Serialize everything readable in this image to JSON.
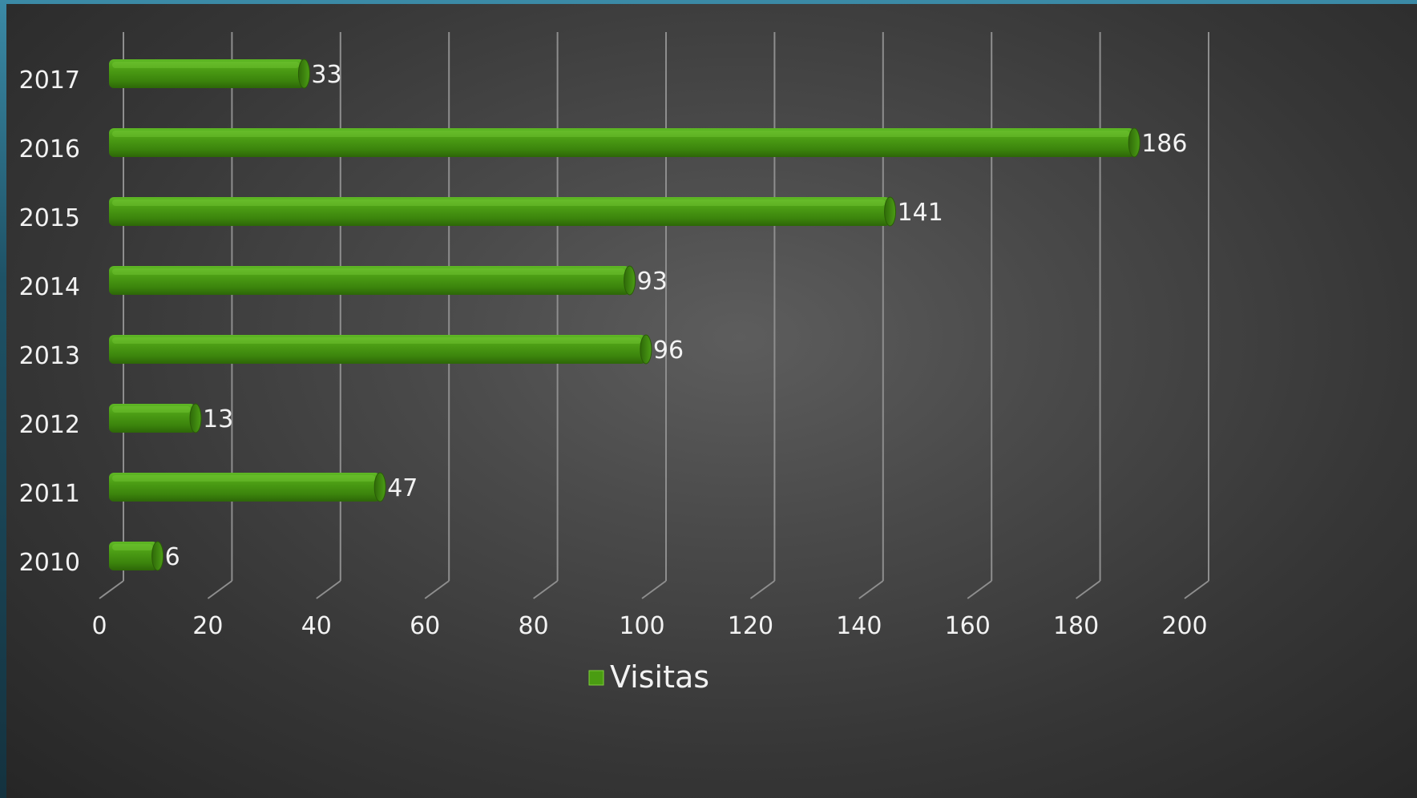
{
  "chart_data": {
    "type": "bar",
    "orientation": "horizontal",
    "categories": [
      "2010",
      "2011",
      "2012",
      "2013",
      "2014",
      "2015",
      "2016",
      "2017"
    ],
    "series": [
      {
        "name": "Visitas",
        "values": [
          6,
          47,
          13,
          96,
          93,
          141,
          186,
          33
        ],
        "color": "#4a9c12"
      }
    ],
    "xlim": [
      0,
      200
    ],
    "xticks": [
      "0",
      "20",
      "40",
      "60",
      "80",
      "100",
      "120",
      "140",
      "160",
      "180",
      "200"
    ],
    "data_labels": [
      "6",
      "47",
      "13",
      "96",
      "93",
      "141",
      "186",
      "33"
    ],
    "grid": true,
    "legend_position": "bottom",
    "style": "3d-cylinder"
  }
}
